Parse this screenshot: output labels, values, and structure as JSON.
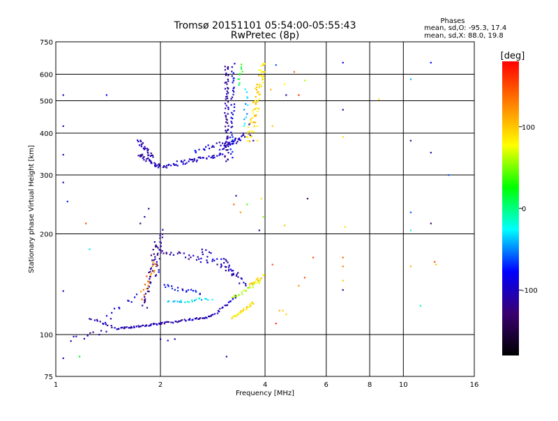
{
  "chart_data": {
    "type": "scatter",
    "title": "Tromsø 20151101 05:54:00-05:55:43",
    "subtitle": "RwPretec (8p)",
    "xlabel": "Frequency [MHz]",
    "ylabel": "Stationary phase Virtual Height [km]",
    "x_scale": "log",
    "y_scale": "log",
    "xlim": [
      1,
      16
    ],
    "ylim": [
      75,
      750
    ],
    "x_ticks": [
      1,
      2,
      4,
      6,
      8,
      10,
      16
    ],
    "x_tick_labels": [
      "1",
      "2",
      "4",
      "6",
      "8",
      "10",
      "16"
    ],
    "y_ticks": [
      75,
      100,
      200,
      300,
      400,
      500,
      600,
      750
    ],
    "y_tick_labels": [
      "75",
      "100",
      "200",
      "300",
      "400",
      "500",
      "600",
      "750"
    ],
    "grid": true,
    "phase_stats": {
      "heading": "Phases",
      "line_o": "mean, sd,O: -95.3, 17.4",
      "line_x": "mean, sd,X:  88.0, 19.8"
    },
    "colorbar": {
      "label": "[deg]",
      "range": [
        -180,
        180
      ],
      "ticks": [
        100,
        0,
        -100
      ],
      "tick_labels": [
        "100",
        "0",
        "-100"
      ],
      "colors": [
        "#ff0000",
        "#ff8000",
        "#ffff00",
        "#00ff00",
        "#00ffff",
        "#0000ff",
        "#3a0070",
        "#000000"
      ]
    },
    "point_color_key": "phase",
    "points": [
      {
        "f": 1.05,
        "h": 520,
        "phase": -100
      },
      {
        "f": 1.05,
        "h": 420,
        "phase": -100
      },
      {
        "f": 1.05,
        "h": 345,
        "phase": -100
      },
      {
        "f": 1.05,
        "h": 285,
        "phase": -100
      },
      {
        "f": 1.05,
        "h": 135,
        "phase": -100
      },
      {
        "f": 1.05,
        "h": 85,
        "phase": -100
      },
      {
        "f": 1.08,
        "h": 250,
        "phase": -70
      },
      {
        "f": 1.17,
        "h": 86,
        "phase": 20
      },
      {
        "f": 1.22,
        "h": 215,
        "phase": 150
      },
      {
        "f": 1.25,
        "h": 180,
        "phase": -30
      },
      {
        "f": 1.4,
        "h": 520,
        "phase": -80
      },
      {
        "f": 3.6,
        "h": 425,
        "phase": -110
      },
      {
        "f": 3.7,
        "h": 380,
        "phase": -110
      },
      {
        "f": 3.8,
        "h": 420,
        "phase": 80
      },
      {
        "f": 3.8,
        "h": 380,
        "phase": 85
      },
      {
        "f": 3.75,
        "h": 500,
        "phase": 80
      },
      {
        "f": 3.85,
        "h": 550,
        "phase": 90
      },
      {
        "f": 3.95,
        "h": 610,
        "phase": 100
      },
      {
        "f": 4.15,
        "h": 540,
        "phase": 110
      },
      {
        "f": 4.2,
        "h": 420,
        "phase": 100
      },
      {
        "f": 4.3,
        "h": 640,
        "phase": -60
      },
      {
        "f": 4.55,
        "h": 560,
        "phase": 80
      },
      {
        "f": 4.6,
        "h": 520,
        "phase": -110
      },
      {
        "f": 4.85,
        "h": 610,
        "phase": 140
      },
      {
        "f": 5.0,
        "h": 520,
        "phase": 160
      },
      {
        "f": 5.2,
        "h": 575,
        "phase": 60
      },
      {
        "f": 6.7,
        "h": 650,
        "phase": -80
      },
      {
        "f": 6.7,
        "h": 470,
        "phase": -110
      },
      {
        "f": 6.7,
        "h": 390,
        "phase": 90
      },
      {
        "f": 8.5,
        "h": 505,
        "phase": 95
      },
      {
        "f": 10.5,
        "h": 580,
        "phase": -40
      },
      {
        "f": 10.5,
        "h": 380,
        "phase": -110
      },
      {
        "f": 12.0,
        "h": 650,
        "phase": -80
      },
      {
        "f": 12.0,
        "h": 350,
        "phase": -110
      },
      {
        "f": 13.5,
        "h": 300,
        "phase": -60
      },
      {
        "f": 3.3,
        "h": 260,
        "phase": -110
      },
      {
        "f": 3.25,
        "h": 245,
        "phase": 140
      },
      {
        "f": 3.4,
        "h": 232,
        "phase": 120
      },
      {
        "f": 3.55,
        "h": 245,
        "phase": 40
      },
      {
        "f": 3.9,
        "h": 255,
        "phase": 90
      },
      {
        "f": 3.95,
        "h": 225,
        "phase": 50
      },
      {
        "f": 3.85,
        "h": 205,
        "phase": -110
      },
      {
        "f": 4.55,
        "h": 212,
        "phase": 100
      },
      {
        "f": 5.3,
        "h": 255,
        "phase": -130
      },
      {
        "f": 6.8,
        "h": 210,
        "phase": 90
      },
      {
        "f": 10.5,
        "h": 232,
        "phase": -60
      },
      {
        "f": 10.5,
        "h": 205,
        "phase": -20
      },
      {
        "f": 12.0,
        "h": 215,
        "phase": -130
      },
      {
        "f": 4.2,
        "h": 162,
        "phase": 150
      },
      {
        "f": 4.4,
        "h": 118,
        "phase": 110
      },
      {
        "f": 4.5,
        "h": 118,
        "phase": 100
      },
      {
        "f": 4.6,
        "h": 115,
        "phase": 95
      },
      {
        "f": 4.3,
        "h": 108,
        "phase": 160
      },
      {
        "f": 5.0,
        "h": 140,
        "phase": 120
      },
      {
        "f": 5.2,
        "h": 148,
        "phase": 150
      },
      {
        "f": 5.5,
        "h": 170,
        "phase": 150
      },
      {
        "f": 6.7,
        "h": 170,
        "phase": 140
      },
      {
        "f": 6.7,
        "h": 160,
        "phase": 130
      },
      {
        "f": 6.7,
        "h": 145,
        "phase": 100
      },
      {
        "f": 6.7,
        "h": 136,
        "phase": -110
      },
      {
        "f": 10.5,
        "h": 160,
        "phase": 110
      },
      {
        "f": 11.2,
        "h": 122,
        "phase": -10
      },
      {
        "f": 12.3,
        "h": 165,
        "phase": 150
      },
      {
        "f": 12.4,
        "h": 162,
        "phase": 100
      },
      {
        "f": 2.0,
        "h": 97,
        "phase": -100
      },
      {
        "f": 2.1,
        "h": 96,
        "phase": -100
      },
      {
        "f": 2.2,
        "h": 97,
        "phase": -110
      },
      {
        "f": 3.1,
        "h": 86,
        "phase": -110
      },
      {
        "f": 1.85,
        "h": 238,
        "phase": -110
      },
      {
        "f": 1.8,
        "h": 225,
        "phase": -110
      },
      {
        "f": 1.75,
        "h": 215,
        "phase": -120
      }
    ],
    "traces": [
      {
        "name": "",
        "phase": -105,
        "f": [
          1.72,
          1.9
        ],
        "h": [
          380,
          340
        ],
        "n": 26,
        "spread": 0.03
      },
      {
        "f": [
          1.72,
          2.0
        ],
        "h": [
          345,
          318
        ],
        "n": 34,
        "spread": 0.028,
        "phase": -110
      },
      {
        "f": [
          2.0,
          3.0
        ],
        "h": [
          318,
          345
        ],
        "n": 50,
        "spread": 0.03,
        "phase": -100
      },
      {
        "f": [
          2.5,
          3.3
        ],
        "h": [
          355,
          380
        ],
        "n": 24,
        "spread": 0.035,
        "phase": -90
      },
      {
        "f": [
          3.0,
          3.6
        ],
        "h": [
          360,
          400
        ],
        "n": 30,
        "spread": 0.03,
        "phase": -100
      },
      {
        "f": [
          3.1,
          3.1
        ],
        "h": [
          330,
          640
        ],
        "n": 60,
        "spread": 0.025,
        "phase": -115
      },
      {
        "f": [
          3.2,
          3.25
        ],
        "h": [
          340,
          640
        ],
        "n": 40,
        "spread": 0.025,
        "phase": -85
      },
      {
        "f": [
          3.35,
          3.45
        ],
        "h": [
          560,
          640
        ],
        "n": 10,
        "spread": 0.02,
        "phase": 20
      },
      {
        "f": [
          3.5,
          3.55
        ],
        "h": [
          420,
          540
        ],
        "n": 12,
        "spread": 0.025,
        "phase": -40
      },
      {
        "f": [
          3.6,
          3.95
        ],
        "h": [
          380,
          640
        ],
        "n": 70,
        "spread": 0.045,
        "phase": 95
      },
      {
        "f": [
          1.25,
          1.5
        ],
        "h": [
          112,
          104
        ],
        "n": 14,
        "spread": 0.015,
        "phase": -110
      },
      {
        "f": [
          1.5,
          2.0
        ],
        "h": [
          104,
          108
        ],
        "n": 40,
        "spread": 0.012,
        "phase": -105
      },
      {
        "f": [
          2.0,
          2.8
        ],
        "h": [
          108,
          113
        ],
        "n": 40,
        "spread": 0.012,
        "phase": -105
      },
      {
        "f": [
          2.8,
          3.3
        ],
        "h": [
          113,
          130
        ],
        "n": 20,
        "spread": 0.015,
        "phase": -100
      },
      {
        "f": [
          1.8,
          1.95
        ],
        "h": [
          120,
          190
        ],
        "n": 36,
        "spread": 0.035,
        "phase": -120
      },
      {
        "f": [
          1.95,
          2.02
        ],
        "h": [
          150,
          205
        ],
        "n": 22,
        "spread": 0.025,
        "phase": -110
      },
      {
        "f": [
          1.75,
          1.95
        ],
        "h": [
          130,
          165
        ],
        "n": 18,
        "spread": 0.04,
        "phase": 130
      },
      {
        "f": [
          2.05,
          2.6
        ],
        "h": [
          140,
          133
        ],
        "n": 20,
        "spread": 0.025,
        "phase": -80
      },
      {
        "f": [
          2.1,
          2.8
        ],
        "h": [
          125,
          128
        ],
        "n": 22,
        "spread": 0.02,
        "phase": -30
      },
      {
        "f": [
          2.0,
          2.8
        ],
        "h": [
          178,
          165
        ],
        "n": 26,
        "spread": 0.035,
        "phase": -110
      },
      {
        "f": [
          2.6,
          3.3
        ],
        "h": [
          180,
          150
        ],
        "n": 22,
        "spread": 0.04,
        "phase": -100
      },
      {
        "f": [
          3.0,
          3.5
        ],
        "h": [
          170,
          140
        ],
        "n": 22,
        "spread": 0.03,
        "phase": -100
      },
      {
        "f": [
          3.2,
          3.7
        ],
        "h": [
          112,
          124
        ],
        "n": 26,
        "spread": 0.015,
        "phase": 90
      },
      {
        "f": [
          3.2,
          3.9
        ],
        "h": [
          128,
          145
        ],
        "n": 22,
        "spread": 0.025,
        "phase": 60
      },
      {
        "f": [
          3.6,
          3.95
        ],
        "h": [
          140,
          150
        ],
        "n": 14,
        "spread": 0.025,
        "phase": 95
      },
      {
        "f": [
          1.4,
          1.7
        ],
        "h": [
          110,
          132
        ],
        "n": 12,
        "spread": 0.05,
        "phase": -100
      },
      {
        "f": [
          1.1,
          1.4
        ],
        "h": [
          97,
          102
        ],
        "n": 10,
        "spread": 0.03,
        "phase": -110
      }
    ]
  }
}
